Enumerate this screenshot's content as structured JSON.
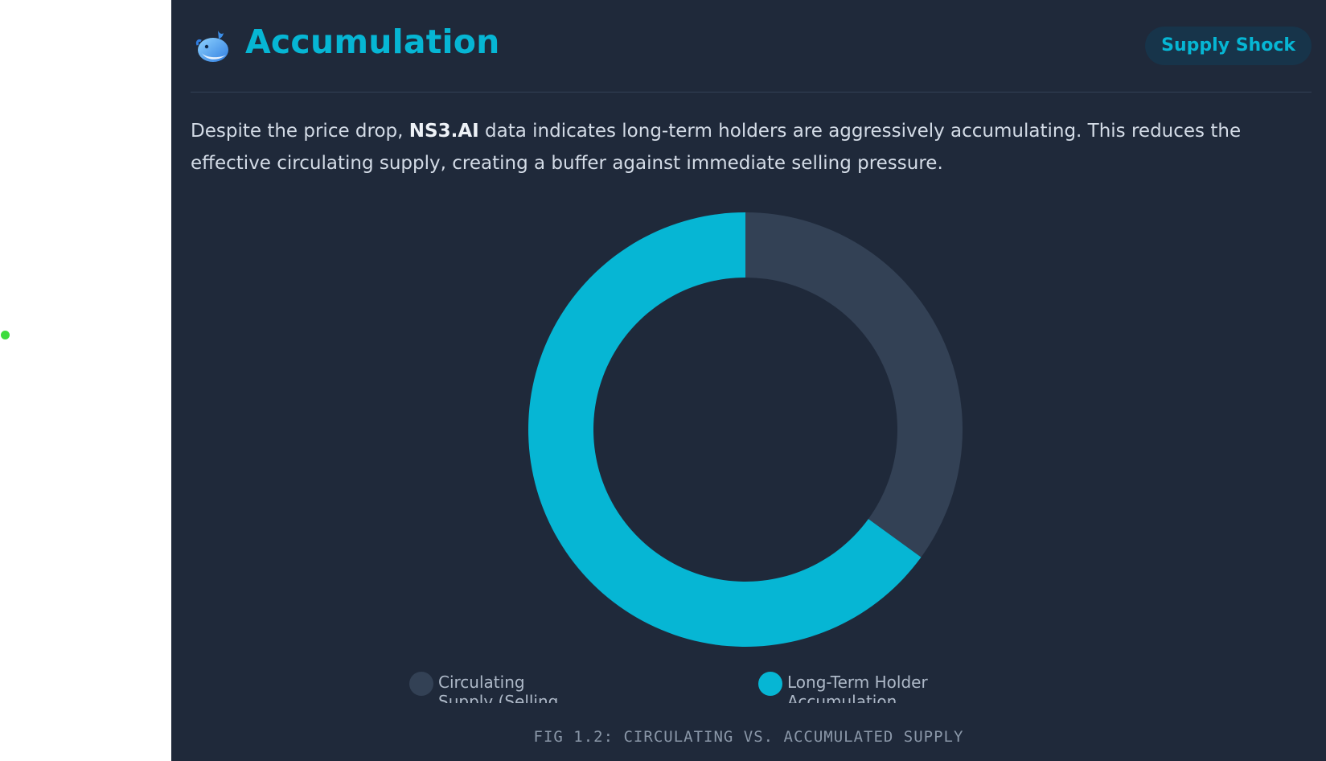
{
  "header": {
    "icon": "whale-icon",
    "title": "Accumulation",
    "badge": "Supply Shock"
  },
  "description": {
    "before": "Despite the price drop, ",
    "highlight": "NS3.AI",
    "after": " data indicates long-term holders are aggressively accumulating. This reduces the effective circulating supply, creating a buffer against immediate selling pressure."
  },
  "chart_data": {
    "type": "pie",
    "title": "",
    "categories": [
      "Circulating Supply (Selling",
      "Long-Term Holder Accumulation"
    ],
    "values": [
      35,
      65
    ],
    "colors": [
      "#334155",
      "#06b6d4"
    ],
    "legend_labels": [
      "Circulating\nSupply (Selling",
      "Long-Term Holder\nAccumulation"
    ],
    "legend_position": "bottom"
  },
  "caption": "FIG 1.2: CIRCULATING VS. ACCUMULATED SUPPLY",
  "colors": {
    "panel_bg": "#1f293a",
    "accent": "#06b6d4",
    "muted_segment": "#334155",
    "badge_bg": "#17344a"
  }
}
